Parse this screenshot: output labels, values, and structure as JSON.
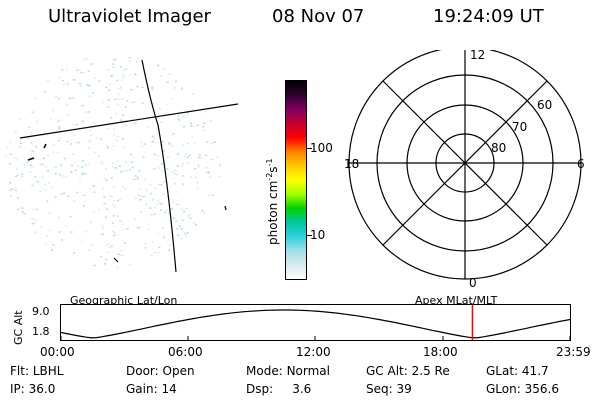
{
  "header": {
    "title": "Ultraviolet Imager",
    "date": "08 Nov 07",
    "time": "19:24:09 UT"
  },
  "colorbar": {
    "unit_label": "photon cm",
    "unit_sup1": "-2",
    "unit_mid": "s",
    "unit_sup2": "-1",
    "ticks": [
      {
        "label": "100",
        "value": 100
      },
      {
        "label": "10",
        "value": 10
      }
    ],
    "colors": [
      "#ffffff",
      "#d8e8ee",
      "#9fe0e6",
      "#30d0e0",
      "#00c8a0",
      "#00d000",
      "#a0ff00",
      "#ffff00",
      "#ffc800",
      "#ff8000",
      "#ff0000",
      "#c00030",
      "#800060",
      "#300030",
      "#000000"
    ]
  },
  "polar_plot": {
    "mlt_labels": {
      "top": "12",
      "left": "18",
      "right": "6",
      "bottom": "0"
    },
    "lat_labels": [
      "60",
      "70",
      "80"
    ]
  },
  "map_labels": {
    "left": "Geographic Lat/Lon",
    "right": "Apex MLat/MLT"
  },
  "altitude_panel": {
    "ylabel": "GC Alt",
    "ytick_top": "9.0",
    "ytick_bottom": "1.8",
    "x_ticks": [
      "00:00",
      "06:00",
      "12:00",
      "18:00",
      "23:59"
    ],
    "current_time_marker_hours": 19.4,
    "marker_color": "#ff0000"
  },
  "status": {
    "row1": [
      {
        "key": "Flt:",
        "value": "LBHL"
      },
      {
        "key": "Door:",
        "value": "Open"
      },
      {
        "key": "Mode:",
        "value": "Normal"
      },
      {
        "key": "GC Alt:",
        "value": "2.5 Re"
      },
      {
        "key": "GLat:",
        "value": "41.7"
      }
    ],
    "row2": [
      {
        "key": "IP:",
        "value": "36.0"
      },
      {
        "key": "Gain:",
        "value": "14"
      },
      {
        "key": "Dsp:",
        "value": "3.6"
      },
      {
        "key": "Seq:",
        "value": "39"
      },
      {
        "key": "GLon:",
        "value": "356.6"
      }
    ]
  }
}
